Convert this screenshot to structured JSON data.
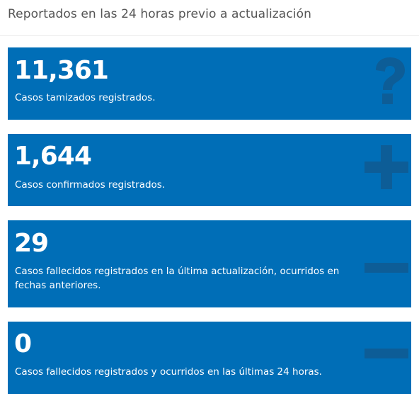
{
  "header": {
    "title": "Reportados en las 24 horas previo a actualización"
  },
  "cards": [
    {
      "number": "11,361",
      "description": "Casos tamizados registrados.",
      "icon": "question-icon"
    },
    {
      "number": "1,644",
      "description": "Casos confirmados registrados.",
      "icon": "plus-icon"
    },
    {
      "number": "29",
      "description_lines": [
        "Casos fallecidos registrados en la última actualización, ocurridos en",
        "fechas anteriores."
      ],
      "icon": "minus-icon"
    },
    {
      "number": "0",
      "description": "Casos fallecidos registrados y ocurridos en las últimas 24 horas.",
      "icon": "minus-icon"
    }
  ],
  "colors": {
    "card_background": "#006eb7",
    "card_icon": "#0d5d97",
    "card_text": "#ffffff",
    "header_text": "#555555"
  }
}
